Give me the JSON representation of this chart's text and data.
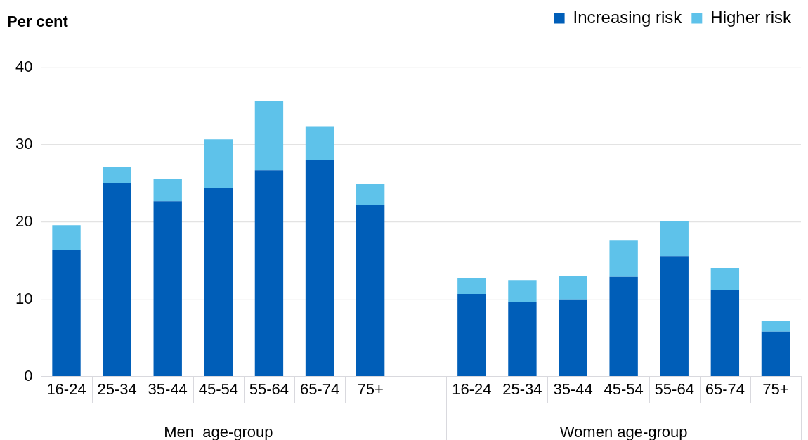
{
  "chart_data": {
    "type": "bar",
    "stacked": true,
    "ylabel": "Per cent",
    "categories": [
      "16-24",
      "25-34",
      "35-44",
      "45-54",
      "55-64",
      "65-74",
      "75+",
      null,
      "16-24",
      "25-34",
      "35-44",
      "45-54",
      "55-64",
      "65-74",
      "75+"
    ],
    "series": [
      {
        "name": "Increasing risk",
        "color": "#005eb8",
        "values": [
          16.4,
          25.0,
          22.7,
          24.4,
          26.7,
          28.0,
          22.2,
          null,
          10.7,
          9.6,
          9.9,
          12.9,
          15.6,
          11.2,
          5.8
        ]
      },
      {
        "name": "Higher risk",
        "color": "#5ec2ea",
        "values": [
          3.2,
          2.1,
          2.9,
          6.3,
          9.0,
          4.4,
          2.7,
          null,
          2.1,
          2.8,
          3.1,
          4.7,
          4.5,
          2.8,
          1.4
        ]
      }
    ],
    "annotations": [
      "Men  age-group",
      "Women age-group"
    ],
    "ylim": [
      0,
      40
    ],
    "yticks": [
      0,
      10,
      20,
      30,
      40
    ],
    "grid": "y",
    "legend": "top right"
  }
}
